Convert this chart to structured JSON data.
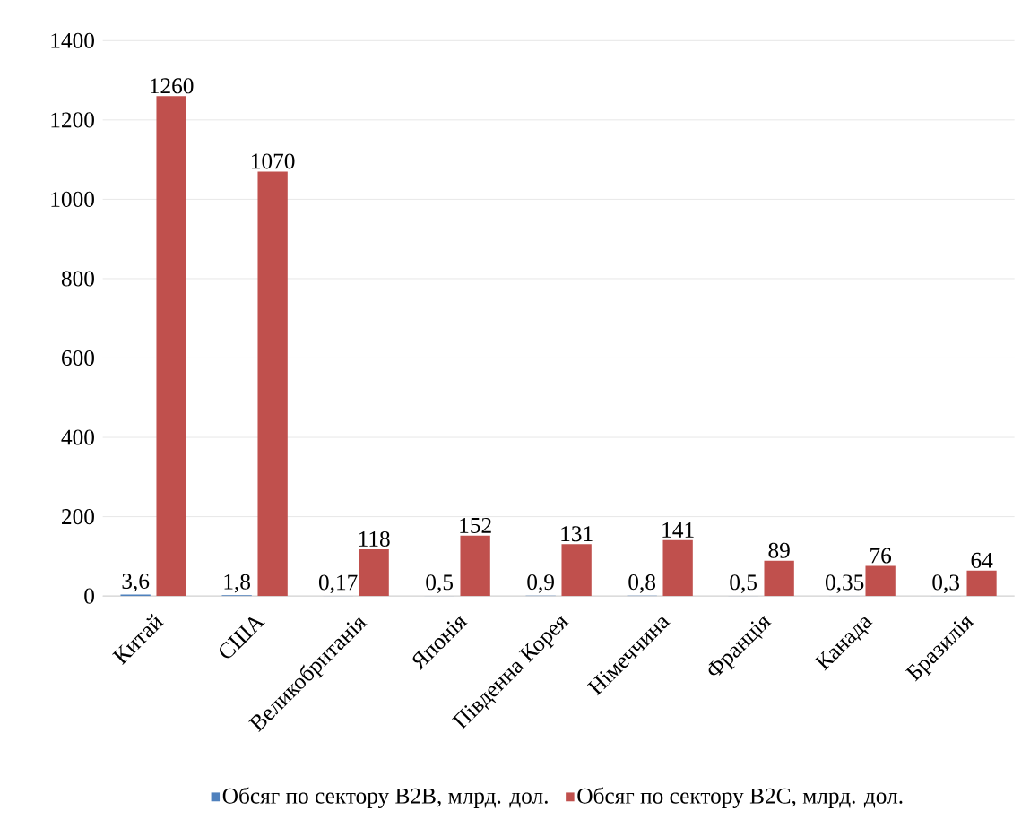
{
  "chart_data": {
    "type": "bar",
    "categories": [
      "Китай",
      "США",
      "Великобританія",
      "Японія",
      "Південна Корея",
      "Німеччина",
      "Франція",
      "Канада",
      "Бразилія"
    ],
    "series": [
      {
        "name": "Обсяг по сектору B2B, млрд. дол.",
        "color": "#4f81bd",
        "values": [
          3.6,
          1.8,
          0.17,
          0.5,
          0.9,
          0.8,
          0.5,
          0.35,
          0.3
        ],
        "value_labels": [
          "3,6",
          "1,8",
          "0,17",
          "0,5",
          "0,9",
          "0,8",
          "0,5",
          "0,35",
          "0,3"
        ]
      },
      {
        "name": "Обсяг по сектору B2C, млрд. дол.",
        "color": "#c0504d",
        "values": [
          1260,
          1070,
          118,
          152,
          131,
          141,
          89,
          76,
          64
        ],
        "value_labels": [
          "1260",
          "1070",
          "118",
          "152",
          "131",
          "141",
          "89",
          "76",
          "64"
        ]
      }
    ],
    "ylim": [
      0,
      1400
    ],
    "yticks": [
      0,
      200,
      400,
      600,
      800,
      1000,
      1200,
      1400
    ],
    "grid": "y",
    "legend": "bottom"
  }
}
